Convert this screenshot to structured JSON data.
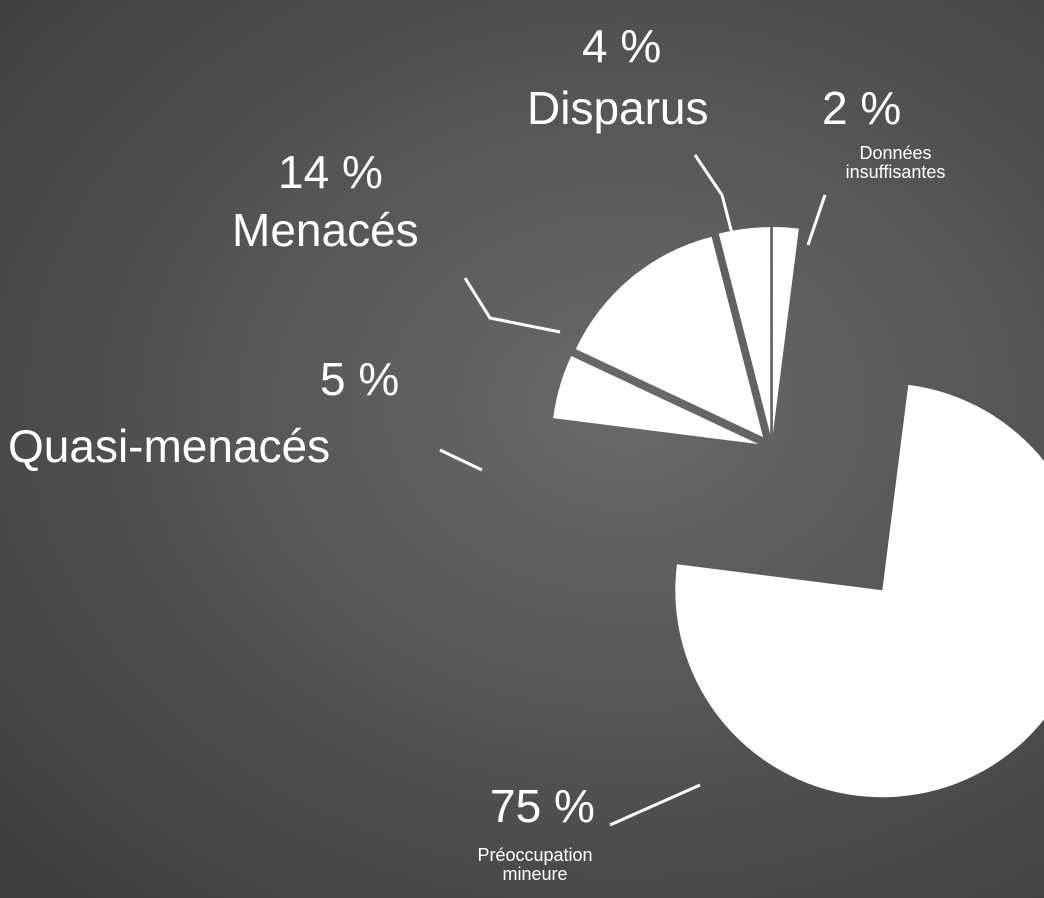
{
  "chart_data": {
    "type": "pie",
    "categories": [
      "Préoccupation mineure",
      "Quasi-menacés",
      "Menacés",
      "Disparus",
      "Données insuffisantes"
    ],
    "values": [
      75,
      5,
      14,
      4,
      2
    ],
    "value_labels": [
      "75 %",
      "5 %",
      "14 %",
      "4 %",
      "2 %"
    ],
    "color": "#ffffff",
    "start_category": 4
  }
}
